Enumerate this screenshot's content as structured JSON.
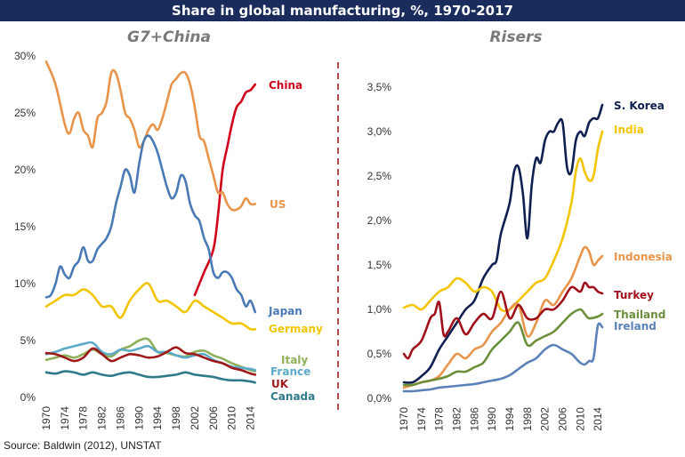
{
  "title": "Share in global manufacturing, %, 1970-2017",
  "source": "Source: Baldwin (2012), UNSTAT",
  "colors": {
    "title_bg": "#1a2c5b",
    "divider": "#a02020"
  },
  "chart_data": [
    {
      "type": "line",
      "title": "G7+China",
      "ylim": [
        0,
        30
      ],
      "yticks": [
        0,
        5,
        10,
        15,
        20,
        25,
        30
      ],
      "ytick_labels": [
        "0%",
        "5%",
        "10%",
        "15%",
        "20%",
        "25%",
        "30%"
      ],
      "xlim": [
        1970,
        2016
      ],
      "xtick_labels": [
        "1970",
        "1974",
        "1978",
        "1982",
        "1986",
        "1990",
        "1994",
        "1998",
        "2002",
        "2006",
        "2010",
        "2014"
      ],
      "grid": false,
      "series": [
        {
          "name": "China",
          "color": "#d0021b",
          "x": [
            2002,
            2004,
            2006,
            2007,
            2008,
            2009,
            2010,
            2011,
            2012,
            2013,
            2014,
            2015
          ],
          "y": [
            9,
            11,
            13,
            16,
            20,
            22,
            24,
            25.5,
            26,
            26.8,
            27,
            27.5
          ]
        },
        {
          "name": "US",
          "color": "#e8944a",
          "x": [
            1970,
            1972,
            1974,
            1975,
            1976,
            1977,
            1978,
            1979,
            1980,
            1981,
            1982,
            1983,
            1984,
            1985,
            1986,
            1987,
            1988,
            1989,
            1990,
            1991,
            1992,
            1993,
            1994,
            1995,
            1996,
            1997,
            1998,
            1999,
            2000,
            2001,
            2002,
            2003,
            2004,
            2005,
            2006,
            2007,
            2008,
            2009,
            2010,
            2011,
            2012,
            2013,
            2014,
            2015
          ],
          "y": [
            29.5,
            27.5,
            24,
            23.2,
            24.5,
            25,
            23.5,
            23,
            22,
            24.5,
            25,
            26,
            28.5,
            28.5,
            27,
            25,
            24.5,
            23.5,
            22,
            22.5,
            23.5,
            24,
            23.5,
            24.5,
            26,
            27.5,
            28,
            28.5,
            28.5,
            27.5,
            25.5,
            23,
            22.5,
            21,
            19.5,
            18,
            18,
            17,
            16.5,
            16.5,
            16.8,
            17.5,
            17,
            17
          ]
        },
        {
          "name": "Japan",
          "color": "#4a7ab5",
          "x": [
            1970,
            1971,
            1972,
            1973,
            1974,
            1975,
            1976,
            1977,
            1978,
            1979,
            1980,
            1981,
            1982,
            1983,
            1984,
            1985,
            1986,
            1987,
            1988,
            1989,
            1990,
            1991,
            1992,
            1993,
            1994,
            1995,
            1996,
            1997,
            1998,
            1999,
            2000,
            2001,
            2002,
            2003,
            2004,
            2005,
            2006,
            2007,
            2008,
            2009,
            2010,
            2011,
            2012,
            2013,
            2014,
            2015
          ],
          "y": [
            8.8,
            9,
            10,
            11.5,
            10.8,
            10.5,
            11.5,
            12,
            13.2,
            12,
            12,
            13,
            13.5,
            14,
            15,
            17,
            18.5,
            20,
            19.5,
            18,
            20.5,
            22.5,
            23,
            22.5,
            21.5,
            20,
            18.5,
            17.5,
            18,
            19.5,
            19,
            17,
            16,
            15.5,
            14,
            13,
            11,
            10.5,
            11,
            11,
            10.5,
            9.5,
            9,
            8,
            8.5,
            7.5
          ]
        },
        {
          "name": "Germany",
          "color": "#f2c500",
          "x": [
            1970,
            1972,
            1974,
            1976,
            1978,
            1980,
            1982,
            1984,
            1986,
            1988,
            1990,
            1992,
            1994,
            1996,
            1998,
            2000,
            2002,
            2004,
            2006,
            2008,
            2010,
            2012,
            2014,
            2015
          ],
          "y": [
            8,
            8.5,
            9,
            9,
            9.5,
            9,
            8,
            8,
            7,
            8.5,
            9.5,
            10,
            8.5,
            8.5,
            8,
            7.5,
            8.5,
            8,
            7.5,
            7,
            6.5,
            6.5,
            6,
            6
          ]
        },
        {
          "name": "Italy",
          "color": "#8fb05a",
          "x": [
            1970,
            1972,
            1974,
            1976,
            1978,
            1980,
            1982,
            1984,
            1986,
            1988,
            1990,
            1992,
            1994,
            1996,
            1998,
            2000,
            2002,
            2004,
            2006,
            2008,
            2010,
            2012,
            2014,
            2015
          ],
          "y": [
            3.3,
            3.5,
            3.7,
            3.5,
            3.8,
            4.2,
            3.8,
            3.6,
            4.2,
            4.5,
            5,
            5.1,
            4,
            3.9,
            3.7,
            3.6,
            4,
            4.1,
            3.7,
            3.4,
            3,
            2.7,
            2.4,
            2.3
          ]
        },
        {
          "name": "France",
          "color": "#5aaac8",
          "x": [
            1970,
            1972,
            1974,
            1976,
            1978,
            1980,
            1982,
            1984,
            1986,
            1988,
            1990,
            1992,
            1994,
            1996,
            1998,
            2000,
            2002,
            2004,
            2006,
            2008,
            2010,
            2012,
            2014,
            2015
          ],
          "y": [
            3.8,
            4,
            4.3,
            4.5,
            4.7,
            4.8,
            4,
            3.8,
            4.2,
            4.1,
            4.3,
            4.5,
            4,
            4,
            3.7,
            3.5,
            3.7,
            3.8,
            3.3,
            3,
            2.7,
            2.6,
            2.5,
            2.4
          ]
        },
        {
          "name": "UK",
          "color": "#9e1a1a",
          "x": [
            1970,
            1972,
            1974,
            1976,
            1978,
            1980,
            1982,
            1984,
            1986,
            1988,
            1990,
            1992,
            1994,
            1996,
            1998,
            2000,
            2002,
            2004,
            2006,
            2008,
            2010,
            2012,
            2014,
            2015
          ],
          "y": [
            3.9,
            3.8,
            3.5,
            3.2,
            3.5,
            4.3,
            3.8,
            3.2,
            3.5,
            3.8,
            3.7,
            3.5,
            3.6,
            4,
            4.4,
            3.9,
            3.8,
            3.5,
            3.2,
            3,
            2.6,
            2.4,
            2.1,
            2
          ]
        },
        {
          "name": "Canada",
          "color": "#2e7a8a",
          "x": [
            1970,
            1972,
            1974,
            1976,
            1978,
            1980,
            1982,
            1984,
            1986,
            1988,
            1990,
            1992,
            1994,
            1996,
            1998,
            2000,
            2002,
            2004,
            2006,
            2008,
            2010,
            2012,
            2014,
            2015
          ],
          "y": [
            2.2,
            2.1,
            2.3,
            2.2,
            2,
            2.2,
            2,
            1.9,
            2.1,
            2.2,
            2,
            1.8,
            1.8,
            1.9,
            2,
            2.2,
            2,
            1.9,
            1.8,
            1.6,
            1.5,
            1.5,
            1.4,
            1.3
          ]
        }
      ]
    },
    {
      "type": "line",
      "title": "Risers",
      "ylim": [
        0,
        3.5
      ],
      "yticks": [
        0,
        0.5,
        1,
        1.5,
        2,
        2.5,
        3,
        3.5
      ],
      "ytick_labels": [
        "0,0%",
        "0,5%",
        "1,0%",
        "1,5%",
        "2,0%",
        "2,5%",
        "3,0%",
        "3,5%"
      ],
      "xlim": [
        1970,
        2016
      ],
      "xtick_labels": [
        "1970",
        "1974",
        "1978",
        "1982",
        "1986",
        "1990",
        "1994",
        "1998",
        "2002",
        "2006",
        "2010",
        "2014"
      ],
      "grid": false,
      "series": [
        {
          "name": "S. Korea",
          "color": "#0f1f4f",
          "x": [
            1970,
            1972,
            1974,
            1976,
            1978,
            1980,
            1982,
            1984,
            1986,
            1988,
            1990,
            1991,
            1992,
            1994,
            1995,
            1996,
            1997,
            1998,
            1999,
            2000,
            2001,
            2002,
            2003,
            2004,
            2005,
            2006,
            2007,
            2008,
            2009,
            2010,
            2011,
            2012,
            2013,
            2014,
            2015
          ],
          "y": [
            0.18,
            0.18,
            0.25,
            0.35,
            0.55,
            0.7,
            0.85,
            1,
            1.1,
            1.35,
            1.5,
            1.55,
            1.85,
            2.2,
            2.55,
            2.6,
            2.3,
            1.8,
            2.4,
            2.7,
            2.65,
            2.9,
            3,
            3,
            3.1,
            3.1,
            2.6,
            2.55,
            2.9,
            3,
            2.95,
            3.1,
            3.15,
            3.15,
            3.3
          ]
        },
        {
          "name": "India",
          "color": "#f2c500",
          "x": [
            1970,
            1972,
            1974,
            1976,
            1978,
            1980,
            1982,
            1984,
            1986,
            1988,
            1990,
            1992,
            1994,
            1996,
            1998,
            2000,
            2002,
            2004,
            2006,
            2008,
            2009,
            2010,
            2011,
            2012,
            2013,
            2014,
            2015
          ],
          "y": [
            1.02,
            1.05,
            1,
            1.1,
            1.2,
            1.25,
            1.35,
            1.3,
            1.2,
            1.25,
            1.2,
            1,
            1,
            1.1,
            1.2,
            1.3,
            1.35,
            1.55,
            1.8,
            2.2,
            2.55,
            2.7,
            2.55,
            2.45,
            2.5,
            2.8,
            3
          ]
        },
        {
          "name": "Indonesia",
          "color": "#e8944a",
          "x": [
            1970,
            1972,
            1974,
            1976,
            1978,
            1980,
            1982,
            1984,
            1986,
            1988,
            1990,
            1992,
            1994,
            1996,
            1998,
            2000,
            2002,
            2004,
            2006,
            2008,
            2010,
            2011,
            2012,
            2013,
            2014,
            2015
          ],
          "y": [
            0.12,
            0.15,
            0.18,
            0.2,
            0.25,
            0.38,
            0.5,
            0.45,
            0.55,
            0.6,
            0.75,
            0.85,
            1,
            1.05,
            0.7,
            0.85,
            1.1,
            1.05,
            1.2,
            1.35,
            1.6,
            1.7,
            1.65,
            1.5,
            1.55,
            1.6
          ]
        },
        {
          "name": "Turkey",
          "color": "#a0101a",
          "x": [
            1970,
            1971,
            1972,
            1974,
            1976,
            1977,
            1978,
            1979,
            1980,
            1982,
            1984,
            1986,
            1988,
            1990,
            1992,
            1994,
            1996,
            1998,
            2000,
            2002,
            2004,
            2006,
            2008,
            2010,
            2011,
            2012,
            2013,
            2014,
            2015
          ],
          "y": [
            0.5,
            0.45,
            0.55,
            0.65,
            0.9,
            0.95,
            1.08,
            0.72,
            0.75,
            0.9,
            0.72,
            0.85,
            0.95,
            0.9,
            1.2,
            0.9,
            1.05,
            0.9,
            0.9,
            1,
            1,
            1.1,
            1.25,
            1.2,
            1.3,
            1.25,
            1.25,
            1.2,
            1.18
          ]
        },
        {
          "name": "Thailand",
          "color": "#6b8e3a",
          "x": [
            1970,
            1972,
            1974,
            1976,
            1978,
            1980,
            1982,
            1984,
            1986,
            1988,
            1990,
            1992,
            1994,
            1996,
            1998,
            2000,
            2002,
            2004,
            2006,
            2008,
            2010,
            2011,
            2012,
            2014,
            2015
          ],
          "y": [
            0.15,
            0.15,
            0.18,
            0.2,
            0.22,
            0.25,
            0.3,
            0.3,
            0.35,
            0.4,
            0.55,
            0.65,
            0.75,
            0.85,
            0.6,
            0.65,
            0.7,
            0.75,
            0.85,
            0.95,
            1,
            0.95,
            0.9,
            0.92,
            0.95
          ]
        },
        {
          "name": "Ireland",
          "color": "#5b82b8",
          "x": [
            1970,
            1972,
            1974,
            1976,
            1978,
            1980,
            1982,
            1984,
            1986,
            1988,
            1990,
            1992,
            1994,
            1996,
            1998,
            2000,
            2002,
            2004,
            2006,
            2008,
            2009,
            2010,
            2011,
            2012,
            2013,
            2014,
            2015
          ],
          "y": [
            0.08,
            0.08,
            0.09,
            0.1,
            0.12,
            0.13,
            0.14,
            0.15,
            0.16,
            0.18,
            0.2,
            0.22,
            0.26,
            0.33,
            0.4,
            0.45,
            0.55,
            0.6,
            0.55,
            0.5,
            0.45,
            0.4,
            0.38,
            0.42,
            0.45,
            0.82,
            0.8
          ]
        }
      ]
    }
  ]
}
